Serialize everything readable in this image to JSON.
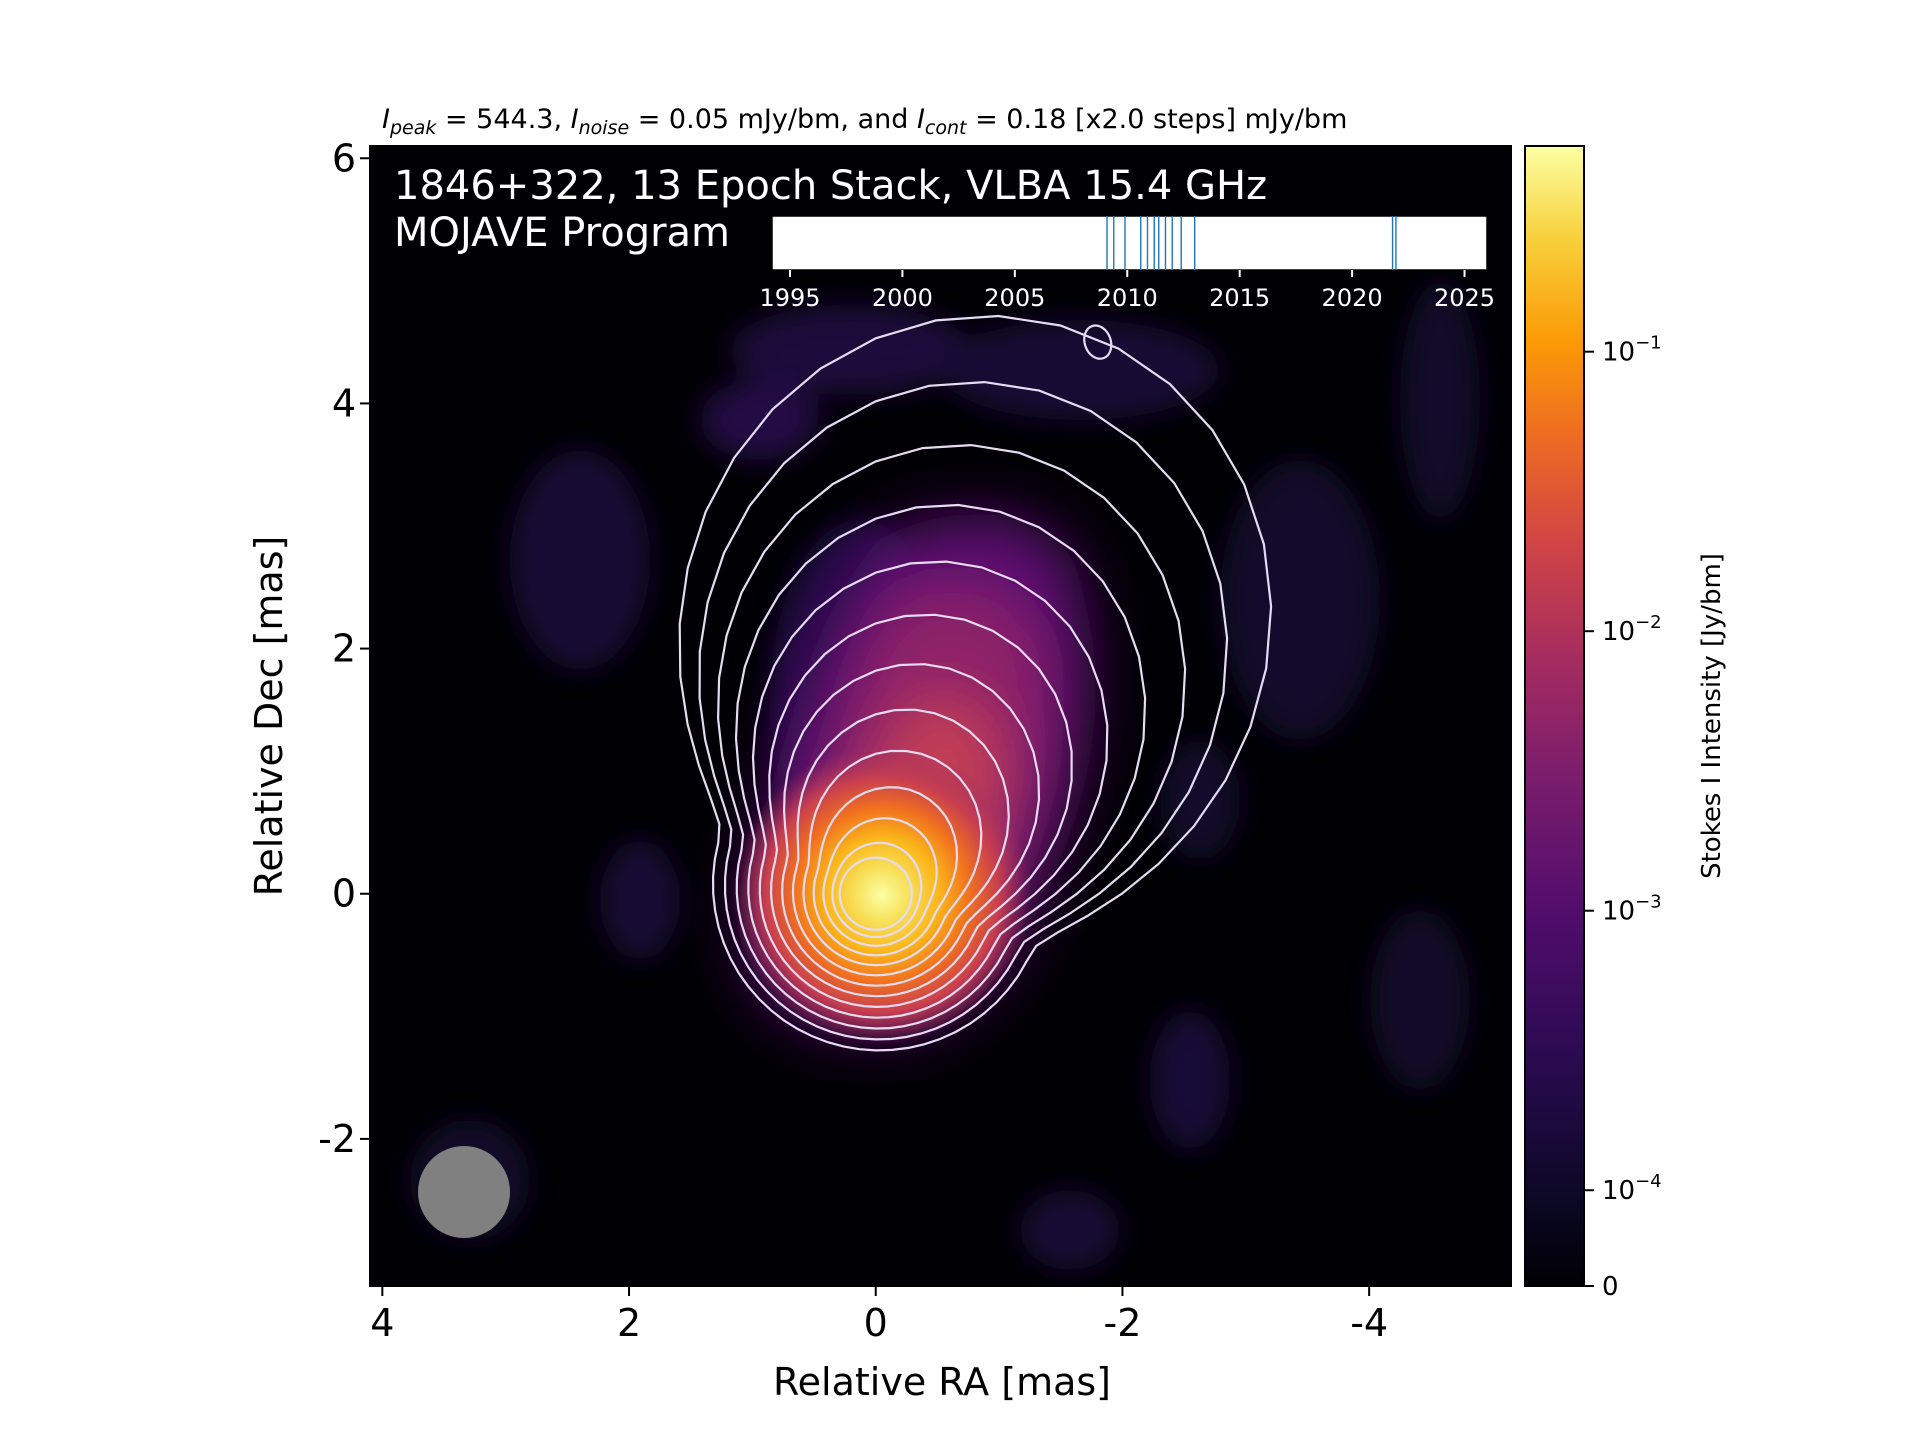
{
  "chart_data": {
    "type": "heatmap",
    "title_parts": {
      "peak_symbol": "I",
      "peak_sub": "peak",
      "peak_value": " = 544.3, ",
      "noise_symbol": "I",
      "noise_sub": "noise",
      "noise_value": " = 0.05 mJy/bm, and ",
      "cont_symbol": "I",
      "cont_sub": "cont",
      "cont_value": " = 0.18 [x2.0 steps] mJy/bm"
    },
    "annotation_line1": "1846+322, 13 Epoch Stack, VLBA 15.4 GHz",
    "annotation_line2": "MOJAVE Program",
    "xlabel": "Relative RA [mas]",
    "ylabel": "Relative Dec [mas]",
    "xlim": [
      4.1,
      -5.15
    ],
    "ylim": [
      -3.2,
      6.1
    ],
    "xticks": [
      4,
      2,
      0,
      -2,
      -4
    ],
    "xtick_labels": [
      "4",
      "2",
      "0",
      "-2",
      "-4"
    ],
    "yticks": [
      -2,
      0,
      2,
      4,
      6
    ],
    "ytick_labels": [
      "-2",
      "0",
      "2",
      "4",
      "6"
    ],
    "core": {
      "ra": 0,
      "dec": 0
    },
    "jet_direction": "north-northwest",
    "contour_base_mJy": 0.18,
    "contour_step_factor": 2.0,
    "contour_color": "#e6dcf2",
    "beam": {
      "ra": 3.35,
      "dec": -2.4,
      "major_mas": 0.75,
      "minor_mas": 0.75,
      "color": "#808080"
    },
    "epoch_inset": {
      "tick_years": [
        1995,
        2000,
        2005,
        2010,
        2015,
        2020,
        2025
      ],
      "tick_labels": [
        "1995",
        "2000",
        "2005",
        "2010",
        "2015",
        "2020",
        "2025"
      ],
      "range": [
        1994.2,
        2026.0
      ],
      "epochs": [
        2009.1,
        2009.4,
        2009.9,
        2010.6,
        2010.9,
        2011.2,
        2011.4,
        2011.7,
        2012.0,
        2012.4,
        2013.0,
        2021.8,
        2021.95
      ],
      "line_color": "#1f77b4"
    },
    "colorbar": {
      "label": "Stokes I Intensity [Jy/bm]",
      "colormap": "inferno",
      "ticks": [
        {
          "base": "10",
          "exp": "−1",
          "value": 0.1
        },
        {
          "base": "10",
          "exp": "−2",
          "value": 0.01
        },
        {
          "base": "10",
          "exp": "−3",
          "value": 0.001
        },
        {
          "base": "10",
          "exp": "−4",
          "value": 0.0001
        },
        {
          "base": "0",
          "exp": "",
          "value": 0
        }
      ],
      "range": [
        0,
        0.5443
      ]
    },
    "colors": {
      "background": "#000004",
      "faint": "#2a0b50",
      "mid": "#b5367a",
      "bright": "#f98d0a",
      "peak": "#fcffa4"
    }
  }
}
